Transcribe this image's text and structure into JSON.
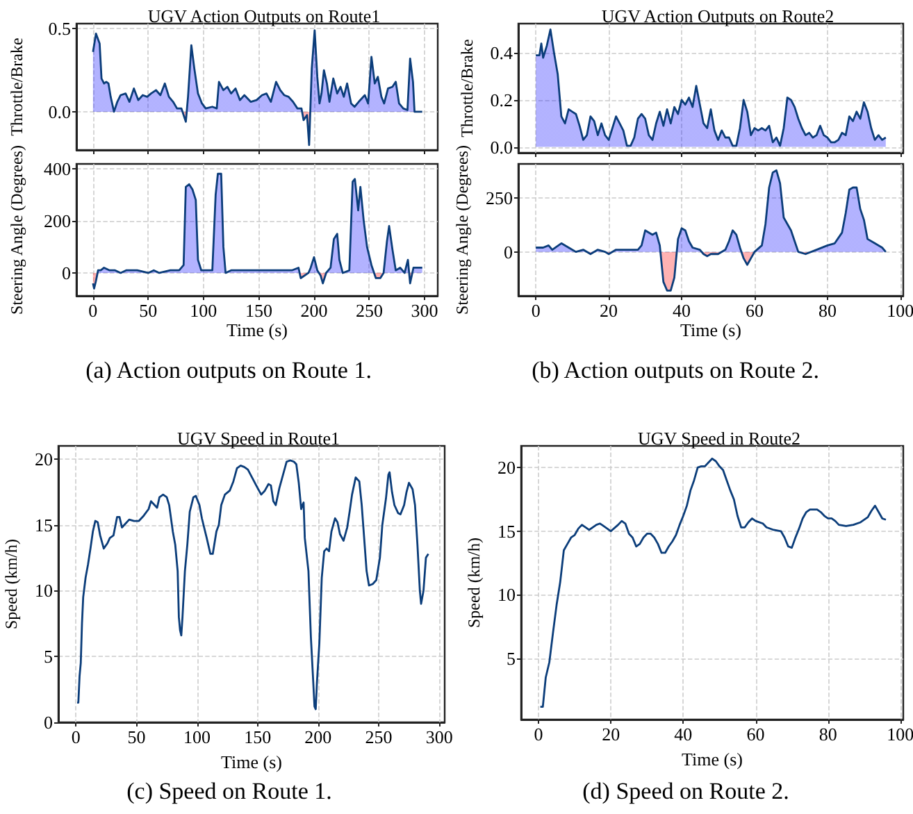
{
  "chart_data": [
    {
      "type": "area",
      "title": "UGV Action Outputs on Route1",
      "ylabel": "Throttle/Brake",
      "tick_labels": "y",
      "grid": true,
      "xlim": [
        -15,
        312
      ],
      "xticks": [
        0,
        50,
        100,
        150,
        200,
        250,
        300
      ],
      "ylim": [
        -0.23,
        0.53
      ],
      "yticks": [
        {
          "value": 0,
          "label": "0.0"
        },
        {
          "value": 0.5,
          "label": "0.5"
        }
      ],
      "series": [
        {
          "color": "#0b3d7a",
          "x": [
            0,
            2.7,
            6,
            7.7,
            10,
            12,
            14,
            16,
            19,
            22,
            25,
            29.5,
            33,
            37,
            41,
            45,
            49,
            52.5,
            57,
            61,
            65,
            68.7,
            72.5,
            76,
            80,
            84,
            86,
            89,
            91.7,
            95,
            98.6,
            102,
            108,
            112,
            114,
            118,
            121.6,
            125,
            129,
            133,
            137,
            142.7,
            148,
            153,
            157,
            161,
            165.7,
            169.5,
            173,
            177,
            181,
            185,
            188.7,
            190.6,
            193.7,
            195.6,
            198,
            200.6,
            203,
            205,
            206.8,
            209,
            211.7,
            214,
            217.5,
            221,
            224,
            227,
            230,
            233.6,
            236.7,
            240.5,
            246,
            249,
            252,
            255,
            257.8,
            261,
            263.5,
            267,
            271,
            274,
            277,
            280.8,
            284.6,
            287,
            289.6,
            291,
            298
          ],
          "values": [
            0.36,
            0.47,
            0.41,
            0.2,
            0.17,
            0.18,
            0.17,
            0.09,
            0,
            0.06,
            0.1,
            0.11,
            0.06,
            0.14,
            0.07,
            0.1,
            0.09,
            0.11,
            0.13,
            0.1,
            0.17,
            0.09,
            0.06,
            0.02,
            0.02,
            -0.06,
            0.09,
            0.4,
            0.26,
            0.11,
            0.05,
            0.02,
            0.03,
            0.02,
            0.18,
            0.13,
            0.15,
            0.11,
            0.14,
            0.07,
            0.1,
            0.06,
            0.07,
            0.1,
            0.11,
            0.06,
            0.18,
            0.13,
            0.1,
            0.09,
            0.06,
            0.02,
            0.02,
            -0.05,
            -0.02,
            -0.2,
            0.26,
            0.49,
            0.21,
            0.05,
            0.11,
            0.25,
            0.17,
            0.06,
            0.2,
            0.11,
            0.15,
            0.09,
            0.17,
            0.05,
            0.03,
            0.06,
            0.1,
            0.05,
            0.33,
            0.17,
            0.21,
            0.09,
            0.05,
            0.14,
            0.15,
            0.18,
            0.05,
            0.02,
            0.01,
            0.32,
            0.18,
            0,
            0
          ]
        }
      ]
    },
    {
      "type": "area",
      "xlabel": "Time (s)",
      "ylabel": "Steering Angle (Degrees)",
      "grid": true,
      "xlim": [
        -15,
        312
      ],
      "xticks": [
        0,
        50,
        100,
        150,
        200,
        250,
        300
      ],
      "ylim": [
        -88,
        418
      ],
      "yticks": [
        0,
        200,
        400
      ],
      "annotations": [
        "(a) Action outputs on Route 1."
      ],
      "series": [
        {
          "color": "#0b3d7a",
          "x": [
            0,
            1,
            2.7,
            4.6,
            7,
            10,
            15,
            20,
            25,
            30,
            40,
            50,
            55,
            60,
            70,
            78,
            82,
            84,
            87,
            90,
            93,
            95,
            98,
            102,
            108,
            111,
            113,
            116,
            118,
            120,
            125,
            140,
            160,
            180,
            186,
            188,
            195,
            197,
            200,
            203,
            206,
            208,
            211,
            215,
            218,
            221,
            223,
            226,
            232,
            235,
            237,
            240,
            242,
            245,
            248,
            252,
            256,
            260,
            263,
            266,
            268,
            271,
            274,
            278,
            282,
            285,
            287,
            290,
            298
          ],
          "values": [
            -40,
            -60,
            -30,
            10,
            10,
            20,
            10,
            10,
            0,
            10,
            10,
            0,
            10,
            0,
            10,
            10,
            30,
            330,
            340,
            320,
            280,
            50,
            10,
            10,
            10,
            300,
            380,
            380,
            100,
            0,
            10,
            10,
            10,
            10,
            20,
            -20,
            0,
            20,
            60,
            10,
            -10,
            -40,
            0,
            20,
            130,
            150,
            50,
            0,
            10,
            350,
            360,
            240,
            330,
            200,
            100,
            30,
            -20,
            -20,
            0,
            120,
            180,
            90,
            10,
            20,
            0,
            50,
            -40,
            20,
            20
          ]
        }
      ]
    },
    {
      "type": "area",
      "title": "UGV Action Outputs on Route2",
      "ylabel": "Throttle/Brake",
      "tick_labels": "y",
      "grid": true,
      "xlim": [
        -4.8,
        100.8
      ],
      "xticks": [
        0,
        20,
        40,
        60,
        80,
        100
      ],
      "ylim": [
        -0.025,
        0.525
      ],
      "yticks": [
        {
          "value": 0,
          "label": "0.0"
        },
        {
          "value": 0.2,
          "label": "0.2"
        },
        {
          "value": 0.4,
          "label": "0.4"
        }
      ],
      "series": [
        {
          "color": "#0b3d7a",
          "x": [
            0,
            1,
            1.5,
            2,
            3,
            4,
            5,
            6,
            7,
            8,
            9,
            10,
            11,
            12,
            13,
            14,
            15,
            16,
            17,
            18,
            19,
            20,
            21,
            22,
            23,
            24,
            25,
            26,
            27,
            28,
            29,
            30,
            31,
            32,
            33,
            34,
            35,
            36,
            37,
            38,
            39,
            40,
            41,
            42,
            43,
            44,
            45,
            46,
            47,
            48,
            49,
            50,
            51,
            52,
            53,
            54,
            55,
            56,
            57,
            58,
            59,
            60,
            61,
            62,
            63,
            64,
            65,
            66,
            67,
            68,
            69,
            70,
            71,
            72,
            73,
            74,
            75,
            76,
            77,
            78,
            79,
            80,
            81,
            82,
            83,
            84,
            85,
            86,
            87,
            88,
            89,
            90,
            91,
            92,
            93,
            94,
            95,
            96
          ],
          "values": [
            0.39,
            0.39,
            0.44,
            0.38,
            0.43,
            0.5,
            0.4,
            0.31,
            0.13,
            0.1,
            0.16,
            0.15,
            0.14,
            0.09,
            0.03,
            0.05,
            0.13,
            0.11,
            0.05,
            0.1,
            0.05,
            0.03,
            0.08,
            0.13,
            0.1,
            0.07,
            0.005,
            0.005,
            0.04,
            0.12,
            0.14,
            0.12,
            0.05,
            0.03,
            0.1,
            0.15,
            0.09,
            0.16,
            0.1,
            0.17,
            0.14,
            0.2,
            0.18,
            0.21,
            0.17,
            0.26,
            0.18,
            0.1,
            0.08,
            0.16,
            0.07,
            0.03,
            0.07,
            0.04,
            0.04,
            0.005,
            0.005,
            0.08,
            0.2,
            0.15,
            0.05,
            0.08,
            0.07,
            0.08,
            0.07,
            0.09,
            0.02,
            0.04,
            0.005,
            0.08,
            0.21,
            0.2,
            0.17,
            0.12,
            0.08,
            0.05,
            0.06,
            0.04,
            0.05,
            0.09,
            0.05,
            0.04,
            0.02,
            0.02,
            0.03,
            0.06,
            0.05,
            0.13,
            0.11,
            0.15,
            0.12,
            0.19,
            0.15,
            0.08,
            0.03,
            0.05,
            0.03,
            0.04
          ]
        }
      ]
    },
    {
      "type": "area",
      "xlabel": "Time (s)",
      "ylabel": "Steering Angle (Degrees)",
      "grid": true,
      "xlim": [
        -4.8,
        100.8
      ],
      "xticks": [
        0,
        20,
        40,
        60,
        80,
        100
      ],
      "ylim": [
        -205,
        410
      ],
      "yticks": [
        0,
        250
      ],
      "annotations": [
        "(b) Action outputs on Route 2."
      ],
      "series": [
        {
          "color": "#0b3d7a",
          "x": [
            0,
            2,
            3.5,
            4.5,
            7,
            9,
            11,
            13,
            15,
            17,
            19,
            20,
            22,
            25,
            28,
            29,
            30,
            32,
            33,
            34,
            35,
            36,
            37,
            38,
            39,
            40,
            41,
            42,
            43,
            45,
            46,
            47,
            48,
            50,
            52,
            53,
            54,
            55,
            56,
            57,
            58,
            59,
            60,
            62,
            63,
            64,
            65,
            66,
            67,
            68,
            70,
            71,
            72,
            74,
            77,
            80,
            82,
            84,
            85,
            86,
            87,
            88,
            89,
            90,
            91,
            93,
            95,
            96
          ],
          "values": [
            20,
            20,
            30,
            10,
            40,
            20,
            0,
            10,
            -10,
            10,
            0,
            -10,
            10,
            10,
            10,
            30,
            100,
            80,
            90,
            30,
            -140,
            -180,
            -180,
            -120,
            60,
            110,
            100,
            50,
            20,
            10,
            -10,
            -20,
            -10,
            -10,
            10,
            50,
            100,
            80,
            20,
            -30,
            -60,
            -30,
            0,
            30,
            130,
            300,
            370,
            380,
            320,
            160,
            100,
            50,
            0,
            -10,
            10,
            30,
            40,
            90,
            180,
            290,
            300,
            300,
            200,
            150,
            60,
            40,
            20,
            0
          ]
        }
      ]
    },
    {
      "type": "line",
      "title": "UGV Speed in Route1",
      "xlabel": "Time (s)",
      "ylabel": "Speed (km/h)",
      "grid": true,
      "xlim": [
        -14.5,
        304.5
      ],
      "xticks": [
        0,
        50,
        100,
        150,
        200,
        250,
        300
      ],
      "ylim": [
        0,
        21
      ],
      "yticks": [
        0,
        5,
        10,
        15,
        20
      ],
      "annotations": [
        "(c) Speed on Route 1."
      ],
      "series": [
        {
          "color": "#0b3d7a",
          "x": [
            1,
            2,
            3,
            4,
            5,
            6,
            8,
            10,
            12,
            14,
            16,
            18,
            20,
            23,
            26,
            28,
            31,
            34,
            36,
            38,
            41,
            44,
            48,
            52,
            56,
            60,
            62,
            65,
            67,
            69,
            72,
            75,
            77,
            80,
            82,
            84,
            85,
            86,
            87,
            88,
            90,
            92,
            94,
            97,
            99,
            102,
            104,
            108,
            111,
            113,
            116,
            118,
            120,
            123,
            127,
            130,
            133,
            136,
            139,
            142,
            146,
            150,
            153,
            156,
            159,
            161,
            163,
            165,
            168,
            171,
            174,
            177,
            180,
            182,
            184,
            186,
            187,
            188,
            189,
            192,
            194,
            196,
            197,
            198,
            199,
            201,
            203,
            205,
            207,
            209,
            211,
            214,
            216,
            218,
            221,
            224,
            226,
            228,
            231,
            234,
            236,
            238,
            240,
            242,
            245,
            248,
            251,
            253,
            256,
            258,
            259,
            261,
            263,
            266,
            268,
            271,
            273,
            275,
            278,
            280,
            282,
            284,
            285,
            287,
            289,
            291
          ],
          "values": [
            1.5,
            1.5,
            3.5,
            4.5,
            7.5,
            9.5,
            11,
            12,
            13.2,
            14.5,
            15.3,
            15.2,
            14.2,
            13.2,
            13.6,
            14,
            14.2,
            15.6,
            15.6,
            14.8,
            15.1,
            15.4,
            15.3,
            15.3,
            15.7,
            16.2,
            16.8,
            16.5,
            16.3,
            17.1,
            17.3,
            17.1,
            16.5,
            14.5,
            13.5,
            11.5,
            8,
            7,
            6.6,
            8,
            11.5,
            13.5,
            16,
            17.1,
            17.2,
            16.5,
            15.5,
            14,
            12.8,
            12.8,
            14.5,
            15,
            16.5,
            17.3,
            17.6,
            18.3,
            19.3,
            19.5,
            19.4,
            19.2,
            18.5,
            17.8,
            17.3,
            17.6,
            18.1,
            18,
            16.8,
            16.5,
            17.8,
            18.8,
            19.8,
            19.9,
            19.8,
            19.6,
            18.2,
            16.2,
            16.5,
            16.7,
            14,
            11.5,
            6.5,
            3,
            1.2,
            1,
            3,
            6,
            11,
            13,
            13.2,
            13,
            14.5,
            15.5,
            15.2,
            14.3,
            13.8,
            14.8,
            16,
            17.3,
            18.6,
            18.3,
            16.5,
            14,
            11.5,
            10.4,
            10.5,
            10.8,
            12.5,
            15,
            17,
            18.8,
            19,
            17.5,
            16.5,
            15.9,
            15.8,
            16.5,
            17.5,
            18.2,
            17.7,
            16.5,
            13.5,
            10,
            9,
            10,
            12.5,
            12.8
          ]
        }
      ]
    },
    {
      "type": "line",
      "title": "UGV Speed in Route2",
      "xlabel": "Time (s)",
      "ylabel": "Speed (km/h)",
      "grid": true,
      "xlim": [
        -4.8,
        100.8
      ],
      "xticks": [
        0,
        20,
        40,
        60,
        80,
        100
      ],
      "ylim": [
        0.2,
        21.7
      ],
      "yticks": [
        5,
        10,
        15,
        20
      ],
      "annotations": [
        "(d) Speed on Route 2."
      ],
      "series": [
        {
          "color": "#0b3d7a",
          "x": [
            0.5,
            1.2,
            2,
            3,
            4,
            5,
            6,
            7,
            8,
            9,
            10,
            11,
            12,
            14,
            16,
            17,
            18,
            20,
            22,
            23,
            24,
            25,
            26,
            27,
            28,
            29,
            30,
            31,
            32,
            33,
            34,
            35,
            36,
            37,
            38,
            39,
            40,
            41,
            42,
            43,
            44,
            45,
            46,
            47,
            48,
            49,
            50,
            51,
            52,
            53,
            54,
            55,
            56,
            57,
            58,
            59,
            60,
            62,
            63,
            65,
            67,
            68,
            69,
            70,
            71,
            72,
            73,
            74,
            75,
            77,
            78,
            79,
            80,
            81,
            82,
            83,
            85,
            87,
            89,
            91,
            92,
            93,
            94,
            95,
            96
          ],
          "values": [
            1.2,
            1.2,
            3.5,
            4.7,
            7,
            9.2,
            11,
            13.5,
            14,
            14.5,
            14.7,
            15.2,
            15.5,
            15.1,
            15.5,
            15.6,
            15.4,
            15,
            15.5,
            15.8,
            15.6,
            14.8,
            14.5,
            13.8,
            14,
            14.5,
            14.8,
            14.8,
            14.5,
            14,
            13.3,
            13.3,
            13.8,
            14.2,
            14.7,
            15.5,
            16.2,
            17,
            18.2,
            19,
            20,
            20.1,
            20.1,
            20.4,
            20.7,
            20.5,
            20.1,
            19.8,
            19,
            18.2,
            17.5,
            16.2,
            15.3,
            15.3,
            15.7,
            16,
            15.8,
            15.6,
            15.3,
            15.1,
            15,
            14.5,
            13.8,
            13.7,
            14.5,
            15.2,
            16,
            16.5,
            16.7,
            16.7,
            16.5,
            16.2,
            16,
            16,
            15.8,
            15.5,
            15.4,
            15.5,
            15.7,
            16.1,
            16.6,
            17,
            16.5,
            16,
            15.9
          ]
        }
      ]
    }
  ]
}
